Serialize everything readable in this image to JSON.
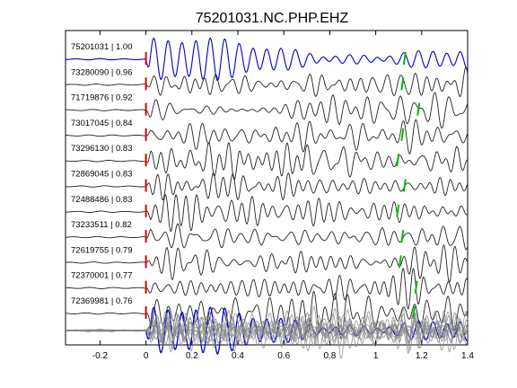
{
  "chart_data": {
    "type": "line",
    "title": "75201031.NC.PHP.EHZ",
    "xlabel": "",
    "ylabel": "",
    "xlim": [
      -0.35,
      1.4
    ],
    "x_ticks": [
      -0.2,
      0,
      0.2,
      0.4,
      0.6,
      0.8,
      1,
      1.2,
      1.4
    ],
    "x_tick_labels": [
      "-0.2",
      "0",
      "0.2",
      "0.4",
      "0.6",
      "0.8",
      "1",
      "1.2",
      "1.4"
    ],
    "grid": false,
    "colors": {
      "reference": "#0000cc",
      "trace": "#222222",
      "overlay": "#888888",
      "p_pick": "#dd0000",
      "s_pick": "#00bb00"
    },
    "p_pick_time": 0.0,
    "traces": [
      {
        "label": "75201031 | 1.00",
        "s_pick": 1.13,
        "reference": true
      },
      {
        "label": "73280090 | 0.96",
        "s_pick": 1.12
      },
      {
        "label": "71719876 | 0.92",
        "s_pick": 1.19
      },
      {
        "label": "73017045 | 0.84",
        "s_pick": 1.12
      },
      {
        "label": "73296130 | 0.83",
        "s_pick": 1.1
      },
      {
        "label": "72869045 | 0.83",
        "s_pick": 1.13
      },
      {
        "label": "72488486 | 0.83",
        "s_pick": 1.1
      },
      {
        "label": "73233511 | 0.82",
        "s_pick": 1.12
      },
      {
        "label": "72619755 | 0.79",
        "s_pick": 1.11
      },
      {
        "label": "72370001 | 0.77",
        "s_pick": 1.18
      },
      {
        "label": "72369981 | 0.76",
        "s_pick": 1.17
      }
    ]
  }
}
